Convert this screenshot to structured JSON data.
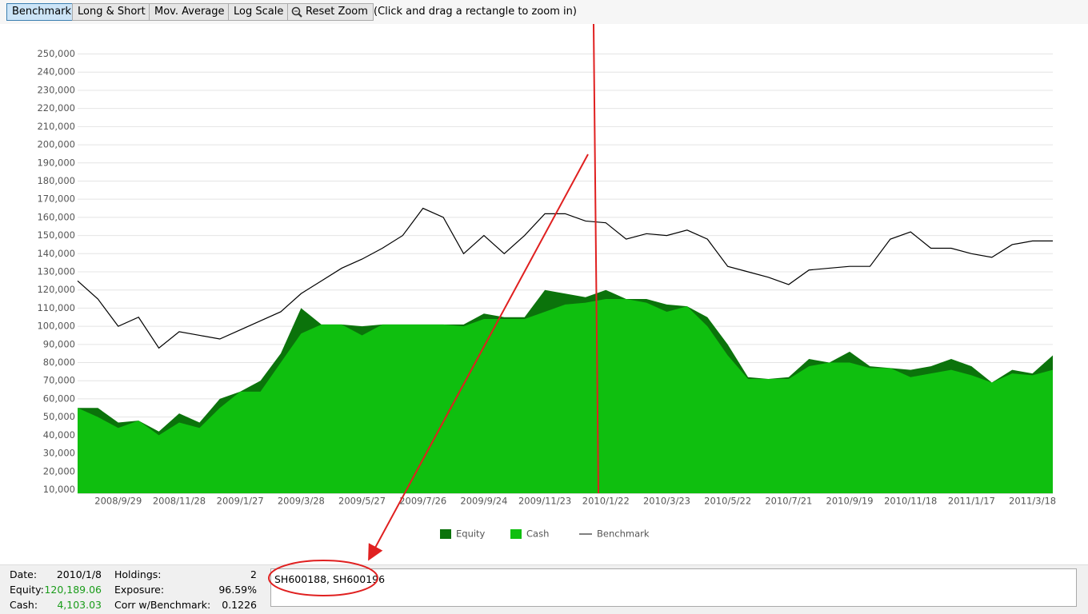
{
  "toolbar": {
    "buttons": [
      "Benchmark",
      "Long & Short",
      "Mov. Average",
      "Log Scale",
      "Reset Zoom"
    ],
    "hint": "(Click and drag a rectangle to zoom in)"
  },
  "chart_data": {
    "type": "area",
    "categories": [
      null,
      null,
      "2008/9/29",
      null,
      null,
      "2008/11/28",
      null,
      null,
      "2009/1/27",
      null,
      null,
      "2009/3/28",
      null,
      null,
      "2009/5/27",
      null,
      null,
      "2009/7/26",
      null,
      null,
      "2009/9/24",
      null,
      null,
      "2009/11/23",
      null,
      null,
      "2010/1/22",
      null,
      null,
      "2010/3/23",
      null,
      null,
      "2010/5/22",
      null,
      null,
      "2010/7/21",
      null,
      null,
      "2010/9/19",
      null,
      null,
      "2010/11/18",
      null,
      null,
      "2011/1/17",
      null,
      null,
      "2011/3/18",
      null
    ],
    "series": [
      {
        "name": "Equity",
        "color": "#0b730b",
        "type": "area",
        "values": [
          55000,
          55000,
          47000,
          48000,
          42000,
          52000,
          47000,
          60000,
          64000,
          70000,
          85000,
          110000,
          101000,
          101000,
          100000,
          101000,
          101000,
          101000,
          101000,
          101000,
          107000,
          105000,
          105000,
          120000,
          118000,
          116000,
          120000,
          115000,
          115000,
          112000,
          111000,
          105000,
          90000,
          72000,
          71000,
          72000,
          82000,
          80000,
          86000,
          78000,
          77000,
          76000,
          78000,
          82000,
          78000,
          69000,
          76000,
          74000,
          84000
        ]
      },
      {
        "name": "Cash",
        "color": "#0fbf0f",
        "type": "area",
        "values": [
          55000,
          50000,
          44000,
          48000,
          40000,
          47000,
          44000,
          55000,
          64000,
          64000,
          80000,
          96000,
          101000,
          101000,
          95000,
          101000,
          101000,
          101000,
          101000,
          100000,
          104000,
          104000,
          104000,
          108000,
          112000,
          113000,
          115000,
          115000,
          113000,
          108000,
          111000,
          100000,
          84000,
          71000,
          71000,
          71000,
          78000,
          80000,
          80000,
          77000,
          77000,
          72000,
          74000,
          76000,
          73000,
          69000,
          74000,
          73000,
          76000
        ]
      },
      {
        "name": "Benchmark",
        "color": "#000000",
        "type": "line",
        "values": [
          125000,
          115000,
          100000,
          105000,
          88000,
          97000,
          95000,
          93000,
          98000,
          103000,
          108000,
          118000,
          125000,
          132000,
          137000,
          143000,
          150000,
          165000,
          160000,
          140000,
          150000,
          140000,
          150000,
          162000,
          162000,
          158000,
          157000,
          148000,
          151000,
          150000,
          153000,
          148000,
          133000,
          130000,
          127000,
          123000,
          131000,
          132000,
          133000,
          133000,
          148000,
          152000,
          143000,
          143000,
          140000,
          138000,
          145000,
          147000,
          147000
        ]
      }
    ],
    "ylim": [
      8000,
      252000
    ],
    "yticks": [
      {
        "value": 10000,
        "label": "10,000"
      },
      {
        "value": 20000,
        "label": "20,000"
      },
      {
        "value": 30000,
        "label": "30,000"
      },
      {
        "value": 40000,
        "label": "40,000"
      },
      {
        "value": 50000,
        "label": "50,000"
      },
      {
        "value": 60000,
        "label": "60,000"
      },
      {
        "value": 70000,
        "label": "70,000"
      },
      {
        "value": 80000,
        "label": "80,000"
      },
      {
        "value": 90000,
        "label": "90,000"
      },
      {
        "value": 100000,
        "label": "100,000"
      },
      {
        "value": 110000,
        "label": "110,000"
      },
      {
        "value": 120000,
        "label": "120,000"
      },
      {
        "value": 130000,
        "label": "130,000"
      },
      {
        "value": 140000,
        "label": "140,000"
      },
      {
        "value": 150000,
        "label": "150,000"
      },
      {
        "value": 160000,
        "label": "160,000"
      },
      {
        "value": 170000,
        "label": "170,000"
      },
      {
        "value": 180000,
        "label": "180,000"
      },
      {
        "value": 190000,
        "label": "190,000"
      },
      {
        "value": 200000,
        "label": "200,000"
      },
      {
        "value": 210000,
        "label": "210,000"
      },
      {
        "value": 220000,
        "label": "220,000"
      },
      {
        "value": 230000,
        "label": "230,000"
      },
      {
        "value": 240000,
        "label": "240,000"
      },
      {
        "value": 250000,
        "label": "250,000"
      }
    ],
    "grid": true,
    "legend": "bottom"
  },
  "status": {
    "fields": [
      {
        "label": "Date:",
        "value": "2010/1/8"
      },
      {
        "label": "Holdings:",
        "value": "2"
      },
      {
        "label": "Equity:",
        "value": "120,189.06"
      },
      {
        "label": "Exposure:",
        "value": "96.59%"
      },
      {
        "label": "Cash:",
        "value": "4,103.03"
      },
      {
        "label": "Corr w/Benchmark:",
        "value": "0.1226"
      }
    ],
    "holdings_list": "SH600188, SH600196"
  }
}
